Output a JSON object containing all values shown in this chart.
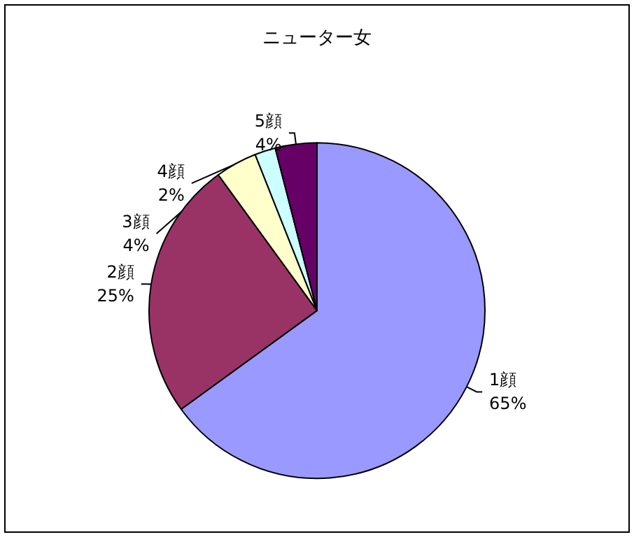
{
  "chart_data": {
    "type": "pie",
    "title": "ニューター女",
    "categories": [
      "1顔",
      "2顔",
      "3顔",
      "4顔",
      "5顔"
    ],
    "values": [
      65,
      25,
      4,
      2,
      4
    ],
    "value_labels": [
      "65%",
      "25%",
      "4%",
      "2%",
      "4%"
    ],
    "colors": [
      "#9999ff",
      "#993366",
      "#ffffcc",
      "#ccffff",
      "#660066"
    ]
  }
}
